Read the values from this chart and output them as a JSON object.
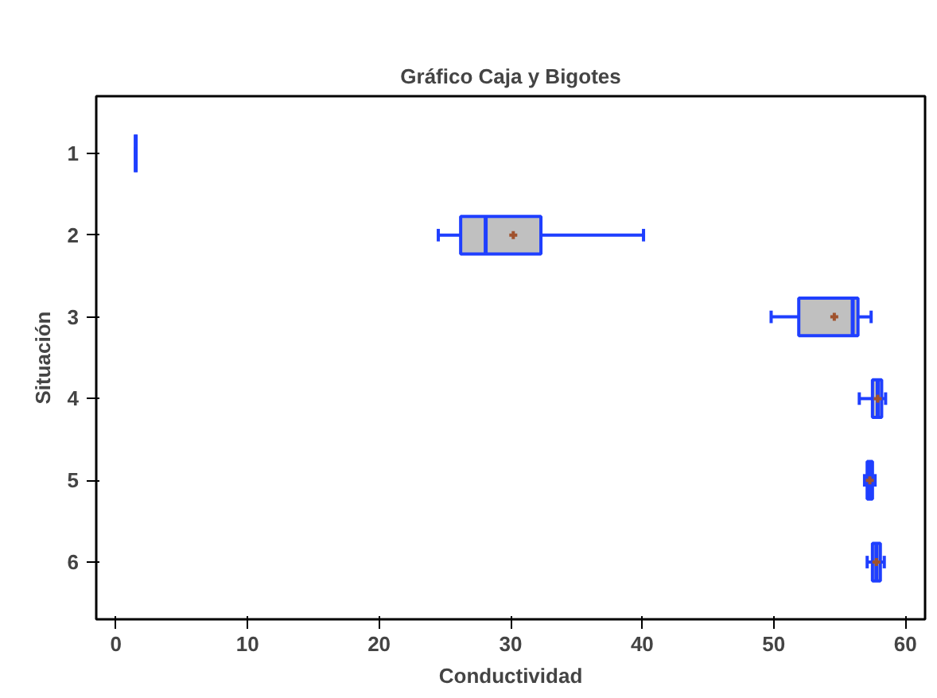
{
  "chart_data": {
    "type": "box",
    "title": "Gráfico Caja y Bigotes",
    "xlabel": "Conductividad",
    "ylabel": "Situación",
    "orientation": "horizontal",
    "categories": [
      "1",
      "2",
      "3",
      "4",
      "5",
      "6"
    ],
    "xlim": [
      -1.5,
      61.5
    ],
    "xticks": [
      0,
      10,
      20,
      30,
      40,
      50,
      60
    ],
    "grid": false,
    "color": "#1f3fff",
    "boxes": [
      {
        "low": 1.5,
        "q1": 1.5,
        "median": 1.5,
        "q3": 1.5,
        "high": 1.5
      },
      {
        "low": 24.5,
        "q1": 26.2,
        "median": 28.1,
        "q3": 32.3,
        "high": 40.1,
        "mean": 30.2
      },
      {
        "low": 49.8,
        "q1": 51.9,
        "median": 56.0,
        "q3": 56.4,
        "high": 57.4,
        "mean": 54.6
      },
      {
        "low": 56.5,
        "q1": 57.5,
        "median": 57.9,
        "q3": 58.2,
        "high": 58.5,
        "mean": 57.9
      },
      {
        "low": 56.9,
        "q1": 57.1,
        "median": 57.3,
        "q3": 57.5,
        "high": 57.7,
        "mean": 57.3
      },
      {
        "low": 57.1,
        "q1": 57.5,
        "median": 57.8,
        "q3": 58.1,
        "high": 58.4,
        "mean": 57.8
      }
    ]
  }
}
